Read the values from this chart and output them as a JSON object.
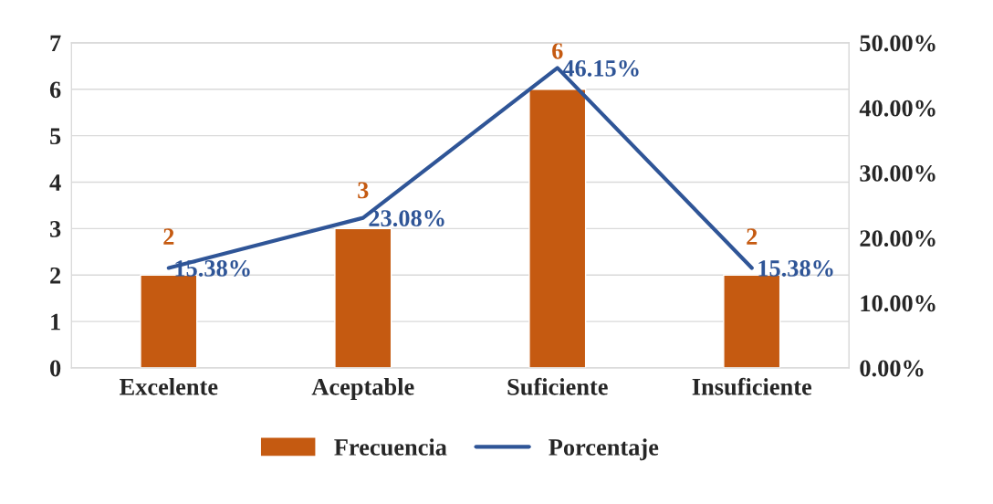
{
  "chart_data": {
    "type": "bar",
    "categories": [
      "Excelente",
      "Aceptable",
      "Suficiente",
      "Insuficiente"
    ],
    "series": [
      {
        "name": "Frecuencia",
        "color": "#c55a11",
        "values": [
          2,
          3,
          6,
          2
        ],
        "value_labels": [
          "2",
          "3",
          "6",
          "2"
        ]
      },
      {
        "name": "Porcentaje",
        "type": "line",
        "axis": "y2",
        "color": "#2f5597",
        "values": [
          15.38,
          23.08,
          46.15,
          15.38
        ],
        "value_labels": [
          "15.38%",
          "23.08%",
          "46.15%",
          "15.38%"
        ]
      }
    ],
    "ylim": [
      0,
      7
    ],
    "yticks": [
      0,
      1,
      2,
      3,
      4,
      5,
      6,
      7
    ],
    "y2lim": [
      0,
      50
    ],
    "y2ticks": [
      {
        "value": 0,
        "label": "0.00%"
      },
      {
        "value": 10,
        "label": "10.00%"
      },
      {
        "value": 20,
        "label": "20.00%"
      },
      {
        "value": 30,
        "label": "30.00%"
      },
      {
        "value": 40,
        "label": "40.00%"
      },
      {
        "value": 50,
        "label": "50.00%"
      }
    ],
    "grid": "y",
    "legend": "bottom",
    "marker": "none",
    "line_style": "solid"
  }
}
